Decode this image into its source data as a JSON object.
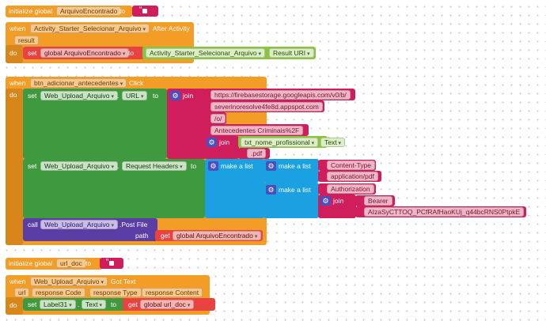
{
  "initialize_global_1": {
    "keyword": "initialize global",
    "name": "ArquivoEncontrado",
    "to": "to"
  },
  "activity_event": {
    "when": "when",
    "component": "Activity_Starter_Selecionar_Arquivo",
    "event": "After Activity",
    "param": "result",
    "do": "do",
    "set": "set",
    "target": "global ArquivoEncontrado",
    "to": "to",
    "src_component": "Activity_Starter_Selecionar_Arquivo",
    "src_property": "Result URI"
  },
  "click_event": {
    "when": "when",
    "component": "btn_adicionar_antecedentes",
    "event": "Click",
    "do": "do",
    "set1": {
      "keyword": "set",
      "component": "Web_Upload_Arquivo",
      "property": "URL",
      "to": "to",
      "join": "join",
      "strings": [
        "https://firebasestorage.googleapis.com/v0/b/",
        "severinoresolve4fe8d.appspot.com",
        "/o/",
        "Antecedentes Criminais%2F"
      ],
      "inner_join": "join",
      "tf_component": "txt_nome_profissional",
      "tf_property": "Text",
      "ext": ".pdf"
    },
    "set2": {
      "keyword": "set",
      "component": "Web_Upload_Arquivo",
      "property": "Request Headers",
      "to": "to",
      "make_list": "make a list",
      "inner_make_list_1": "make a list",
      "inner_make_list_2": "make a list",
      "ct_key": "Content-Type",
      "ct_value": "application/pdf",
      "auth_key": "Authorization",
      "join": "join",
      "bearer": "Bearer ",
      "token": "AIzaSyCTTOQ_PCfRAfHaoKUj_q44bcRNS0PtpkE"
    },
    "call": {
      "keyword": "call",
      "component": "Web_Upload_Arquivo",
      "method": ".Post File",
      "param": "path",
      "get": "get",
      "var": "global ArquivoEncontrado"
    }
  },
  "initialize_global_2": {
    "keyword": "initialize global",
    "name": "url_doc",
    "to": "to"
  },
  "gottext_event": {
    "when": "when",
    "component": "Web_Upload_Arquivo",
    "event": "Got Text",
    "params": [
      "url",
      "response Code",
      "response Type",
      "response Content"
    ],
    "do": "do",
    "set": "set",
    "target_component": "Label31",
    "target_property": "Text",
    "to": "to",
    "get": "get",
    "var": "global url_doc"
  }
}
